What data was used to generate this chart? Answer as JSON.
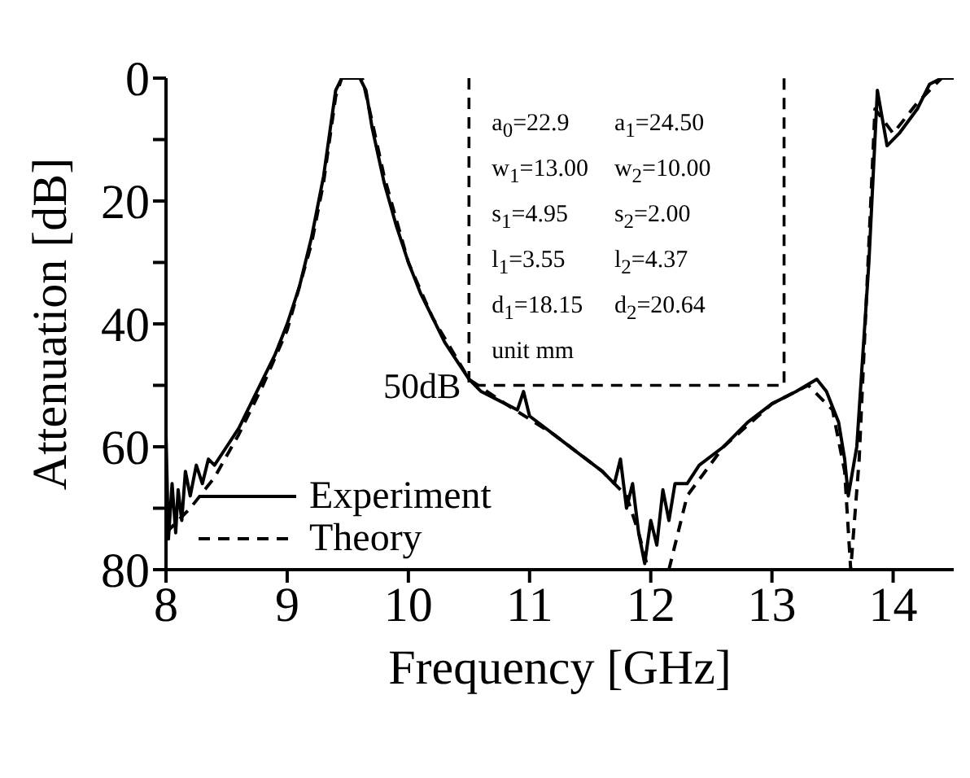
{
  "chart_data": {
    "type": "line",
    "xlabel": "Frequency [GHz]",
    "ylabel": "Attenuation [dB]",
    "xlim": [
      8,
      14.5
    ],
    "xticks": [
      8,
      9,
      10,
      11,
      12,
      13,
      14
    ],
    "ylim": [
      80,
      0
    ],
    "yticks": [
      0,
      {
        "value": 10,
        "label": null
      },
      20,
      {
        "value": 30,
        "label": null
      },
      40,
      {
        "value": 50,
        "label": null
      },
      60,
      {
        "value": 70,
        "label": null
      },
      80
    ],
    "legend": "bottom left",
    "marker": "none",
    "series": [
      {
        "name": "Experiment",
        "color": "#000000",
        "line_style": "solid",
        "x": [
          8.0,
          8.02,
          8.05,
          8.08,
          8.1,
          8.13,
          8.16,
          8.2,
          8.25,
          8.3,
          8.35,
          8.4,
          8.5,
          8.6,
          8.7,
          8.8,
          8.9,
          9.0,
          9.1,
          9.2,
          9.3,
          9.35,
          9.4,
          9.45,
          9.6,
          9.65,
          9.7,
          9.8,
          9.9,
          10.0,
          10.1,
          10.2,
          10.3,
          10.4,
          10.5,
          10.6,
          10.8,
          10.9,
          10.95,
          11.0,
          11.2,
          11.4,
          11.6,
          11.7,
          11.75,
          11.8,
          11.85,
          11.9,
          11.95,
          12.0,
          12.05,
          12.1,
          12.15,
          12.2,
          12.3,
          12.4,
          12.6,
          12.8,
          13.0,
          13.2,
          13.37,
          13.45,
          13.55,
          13.6,
          13.63,
          13.7,
          13.8,
          13.87,
          13.95,
          14.05,
          14.2,
          14.3,
          14.4,
          14.5
        ],
        "values": [
          58,
          75,
          66,
          74,
          67,
          72,
          64,
          68,
          63,
          66,
          62,
          63,
          60,
          57,
          53,
          49,
          45,
          40,
          34,
          26,
          16,
          9,
          2,
          0,
          0,
          2,
          8,
          17,
          24,
          30,
          35,
          39,
          43,
          46,
          49,
          51,
          53,
          54,
          51,
          55,
          58,
          61,
          64,
          66,
          62,
          70,
          66,
          74,
          79,
          72,
          76,
          67,
          72,
          66,
          66,
          63,
          60,
          56,
          53,
          51,
          49,
          51,
          56,
          62,
          68,
          60,
          30,
          2,
          11,
          9,
          5,
          1,
          0,
          0
        ]
      },
      {
        "name": "Theory",
        "color": "#000000",
        "line_style": "dashed",
        "x": [
          8.0,
          8.2,
          8.4,
          8.6,
          8.8,
          9.0,
          9.2,
          9.3,
          9.4,
          9.45,
          9.62,
          9.7,
          9.8,
          10.0,
          10.2,
          10.5,
          10.8,
          11.2,
          11.6,
          11.8,
          11.9,
          11.98,
          12.15,
          12.3,
          12.6,
          13.0,
          13.3,
          13.5,
          13.6,
          13.65,
          13.72,
          13.85,
          14.0,
          14.2,
          14.4,
          14.5
        ],
        "values": [
          74,
          70,
          65,
          58,
          50,
          41,
          27,
          17,
          3,
          0,
          0,
          7,
          16,
          30,
          39,
          49,
          53,
          58,
          64,
          68,
          74,
          80,
          80,
          68,
          60,
          53,
          50,
          54,
          64,
          80,
          62,
          5,
          9,
          4,
          0,
          0
        ]
      },
      {
        "color": "#000000",
        "line_style": "dashed",
        "x": [
          10.5,
          10.5,
          13.1,
          13.1
        ],
        "values": [
          0,
          50,
          50,
          0
        ]
      }
    ],
    "annotations": [
      {
        "text": "50dB",
        "x": 10.5,
        "y": 50
      },
      "a$_{0}$=22.9",
      "a$_{1}$=24.50",
      "w$_{1}$=13.00",
      "w$_{2}$=10.00",
      "s$_{1}$=4.95",
      "s$_{2}$=2.00",
      "l$_{1}$=3.55",
      "l$_{2}$=4.37",
      "d$_{1}$=18.15",
      "d$_{2}$=20.64",
      "unit mm"
    ]
  }
}
